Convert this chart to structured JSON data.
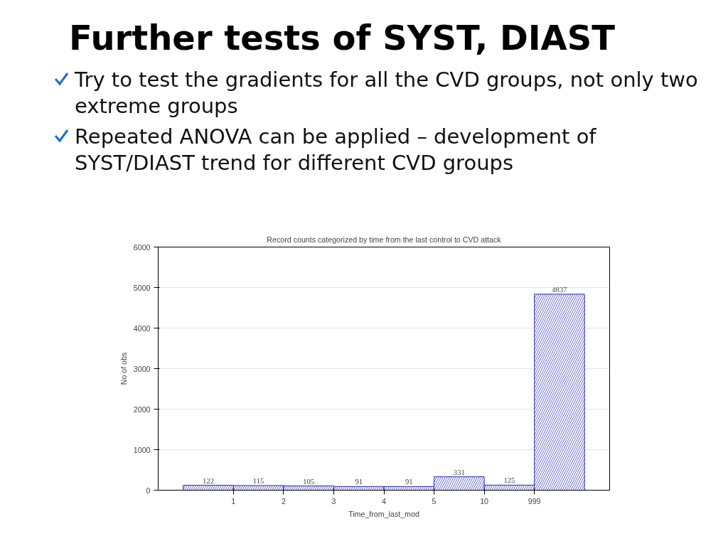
{
  "chart_data": {
    "type": "bar",
    "title": "Further tests of SYST, DIAST",
    "annotations": [
      "Try to test the gradients for all the CVD groups, not only two extreme groups",
      "Repeated ANOVA can be applied – development of SYST/DIAST trend for different CVD groups"
    ],
    "subtitle": "Record counts categorized by time from the last control to CVD attack",
    "xlabel": "Time_from_last_mod",
    "ylabel": "No of obs",
    "categories": [
      "1",
      "2",
      "3",
      "4",
      "5",
      "10",
      "999",
      null
    ],
    "values": [
      122,
      115,
      105,
      91,
      91,
      331,
      125,
      4837
    ],
    "color": "#2a2ab8",
    "data_labels": true,
    "ylim": [
      0,
      6000
    ],
    "yticks": [
      0,
      1000,
      2000,
      3000,
      4000,
      5000,
      6000
    ],
    "grid": "y"
  }
}
